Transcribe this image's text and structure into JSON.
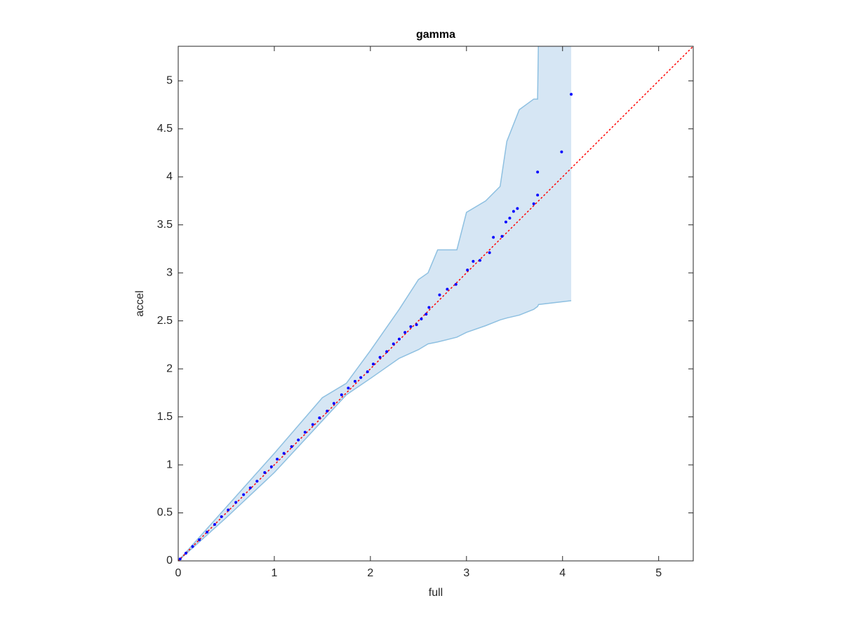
{
  "chart_data": {
    "type": "scatter",
    "title": "gamma",
    "xlabel": "full",
    "ylabel": "accel",
    "xlim": [
      0,
      5.36
    ],
    "ylim": [
      0,
      5.36
    ],
    "xticks": [
      0,
      1,
      2,
      3,
      4,
      5
    ],
    "yticks": [
      0,
      0.5,
      1,
      1.5,
      2,
      2.5,
      3,
      3.5,
      4,
      4.5,
      5
    ],
    "series": [
      {
        "color": "#0000ff",
        "x": [
          0.02,
          0.08,
          0.15,
          0.22,
          0.3,
          0.38,
          0.45,
          0.52,
          0.6,
          0.68,
          0.75,
          0.82,
          0.9,
          0.97,
          1.03,
          1.1,
          1.18,
          1.25,
          1.32,
          1.4,
          1.47,
          1.55,
          1.62,
          1.7,
          1.77,
          1.84,
          1.9,
          1.97,
          2.03,
          2.1,
          2.17,
          2.24,
          2.3,
          2.36,
          2.42,
          2.48,
          2.53,
          2.58,
          2.61,
          2.72,
          2.8,
          2.89,
          3.01,
          3.07,
          3.14,
          3.24,
          3.28,
          3.37,
          3.41,
          3.45,
          3.49,
          3.53,
          3.7,
          3.74,
          3.74,
          3.99,
          4.09
        ],
        "y": [
          0.02,
          0.08,
          0.15,
          0.22,
          0.3,
          0.38,
          0.46,
          0.53,
          0.61,
          0.69,
          0.76,
          0.83,
          0.92,
          0.98,
          1.06,
          1.12,
          1.19,
          1.26,
          1.34,
          1.42,
          1.49,
          1.56,
          1.64,
          1.73,
          1.8,
          1.87,
          1.91,
          1.97,
          2.05,
          2.12,
          2.18,
          2.26,
          2.31,
          2.38,
          2.44,
          2.46,
          2.52,
          2.57,
          2.64,
          2.77,
          2.83,
          2.88,
          3.03,
          3.12,
          3.13,
          3.21,
          3.37,
          3.38,
          3.53,
          3.57,
          3.64,
          3.67,
          3.72,
          3.81,
          4.05,
          4.26,
          4.86
        ]
      }
    ],
    "band": {
      "color": "#d6e6f4",
      "edge_color": "#8ec0e1",
      "x": [
        0,
        0.5,
        1,
        1.5,
        1.75,
        2,
        2.3,
        2.5,
        2.6,
        2.7,
        2.9,
        3.0,
        3.2,
        3.35,
        3.42,
        3.55,
        3.7,
        3.74,
        3.75,
        4.09
      ],
      "upper": [
        0,
        0.56,
        1.12,
        1.7,
        1.85,
        2.19,
        2.62,
        2.93,
        3.0,
        3.24,
        3.24,
        3.63,
        3.75,
        3.9,
        4.37,
        4.7,
        4.81,
        4.81,
        5.5,
        5.5
      ],
      "lower": [
        0,
        0.45,
        0.92,
        1.46,
        1.73,
        1.9,
        2.11,
        2.2,
        2.26,
        2.28,
        2.33,
        2.38,
        2.45,
        2.51,
        2.53,
        2.56,
        2.62,
        2.65,
        2.67,
        2.71
      ]
    },
    "reference_line": {
      "slope": 1,
      "intercept": 0,
      "color": "#ff0000"
    }
  }
}
